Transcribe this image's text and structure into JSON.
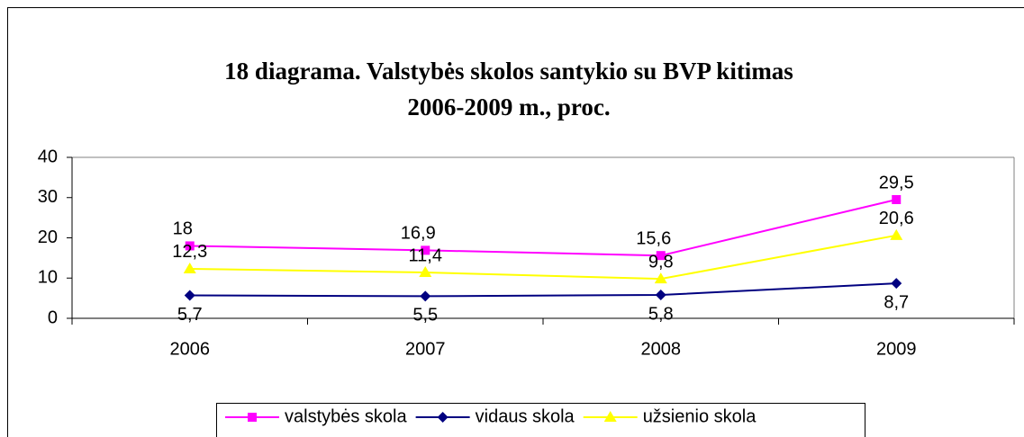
{
  "chart_data": {
    "type": "line",
    "title": "18 diagrama. Valstybės skolos santykio su BVP kitimas",
    "subtitle": "2006-2009 m., proc.",
    "categories": [
      "2006",
      "2007",
      "2008",
      "2009"
    ],
    "series": [
      {
        "name": "valstybės skola",
        "color": "#ff00ff",
        "marker": "square",
        "values": [
          18,
          16.9,
          15.6,
          29.5
        ],
        "value_labels": [
          "18",
          "16,9",
          "15,6",
          "29,5"
        ]
      },
      {
        "name": "vidaus skola",
        "color": "#000080",
        "marker": "diamond",
        "values": [
          5.7,
          5.5,
          5.8,
          8.7
        ],
        "value_labels": [
          "5,7",
          "5,5",
          "5,8",
          "8,7"
        ]
      },
      {
        "name": "užsienio skola",
        "color": "#ffff00",
        "marker": "triangle",
        "values": [
          12.3,
          11.4,
          9.8,
          20.6
        ],
        "value_labels": [
          "12,3",
          "11,4",
          "9,8",
          "20,6"
        ]
      }
    ],
    "ylim": [
      0,
      40
    ],
    "yticks": [
      0,
      10,
      20,
      30,
      40
    ],
    "grid": false,
    "legend": "bottom"
  }
}
